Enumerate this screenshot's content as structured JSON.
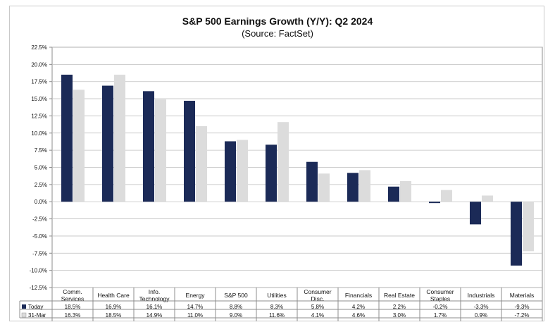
{
  "chart_data": {
    "type": "bar",
    "title": "S&P 500 Earnings Growth (Y/Y): Q2 2024",
    "subtitle": "(Source: FactSet)",
    "categories": [
      [
        "Comm.",
        "Services"
      ],
      [
        "Health Care"
      ],
      [
        "Info.",
        "Technology"
      ],
      [
        "Energy"
      ],
      [
        "S&P 500"
      ],
      [
        "Utilities"
      ],
      [
        "Consumer",
        "Disc."
      ],
      [
        "Financials"
      ],
      [
        "Real Estate"
      ],
      [
        "Consumer",
        "Staples"
      ],
      [
        "Industrials"
      ],
      [
        "Materials"
      ]
    ],
    "series": [
      {
        "name": "Today",
        "color": "#1b2a57",
        "values": [
          18.5,
          16.9,
          16.1,
          14.7,
          8.8,
          8.3,
          5.8,
          4.2,
          2.2,
          -0.2,
          -3.3,
          -9.3
        ],
        "labels": [
          "18.5%",
          "16.9%",
          "16.1%",
          "14.7%",
          "8.8%",
          "8.3%",
          "5.8%",
          "4.2%",
          "2.2%",
          "-0.2%",
          "-3.3%",
          "-9.3%"
        ]
      },
      {
        "name": "31-Mar",
        "color": "#dcdcdc",
        "values": [
          16.3,
          18.5,
          14.9,
          11.0,
          9.0,
          11.6,
          4.1,
          4.6,
          3.0,
          1.7,
          0.9,
          -7.2
        ],
        "labels": [
          "16.3%",
          "18.5%",
          "14.9%",
          "11.0%",
          "9.0%",
          "11.6%",
          "4.1%",
          "4.6%",
          "3.0%",
          "1.7%",
          "0.9%",
          "-7.2%"
        ]
      }
    ],
    "y_ticks": [
      "22.5%",
      "20.0%",
      "17.5%",
      "15.0%",
      "12.5%",
      "10.0%",
      "7.5%",
      "5.0%",
      "2.5%",
      "0.0%",
      "-2.5%",
      "-5.0%",
      "-7.5%",
      "-10.0%",
      "-12.5%"
    ],
    "ylim": [
      -12.5,
      22.5
    ],
    "grid": true,
    "legend_placement": "data-table-left"
  }
}
